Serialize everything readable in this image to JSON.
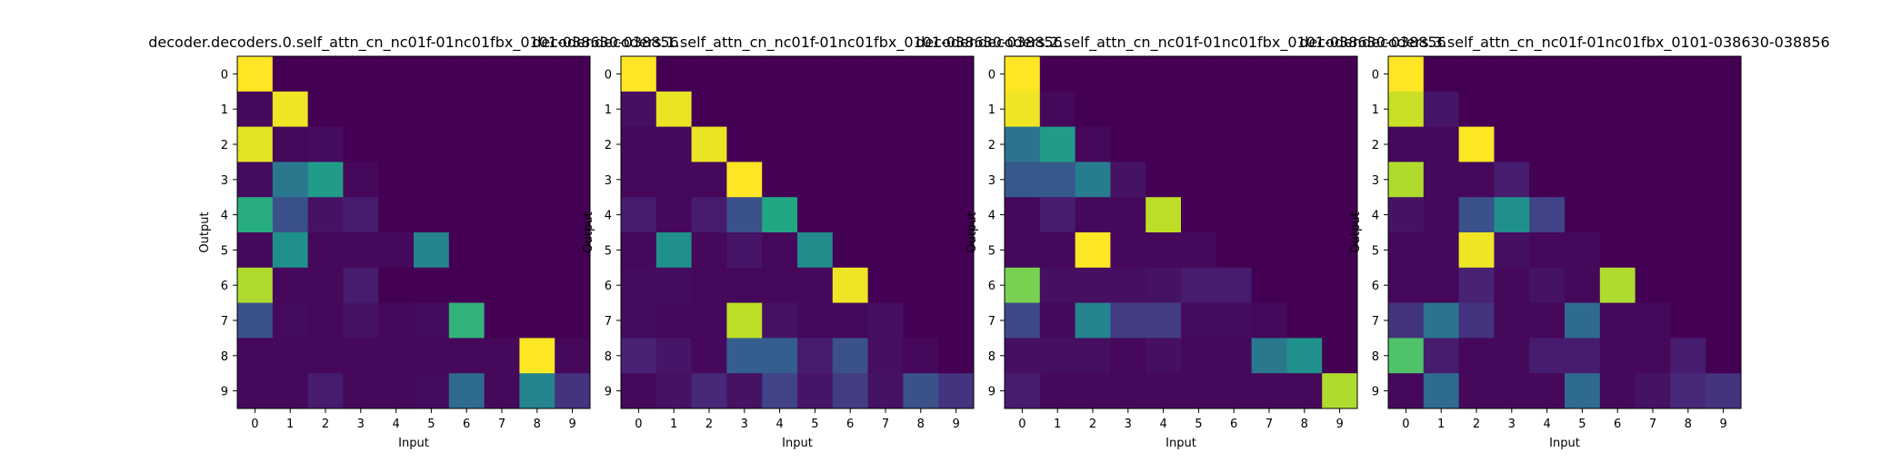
{
  "chart_data": [
    {
      "type": "heatmap",
      "title": "decoder.decoders.0.self_attn_cn_nc01f-01nc01fbx_0101-038630-038856",
      "xlabel": "Input",
      "ylabel": "Output",
      "x_ticks": [
        "0",
        "1",
        "2",
        "3",
        "4",
        "5",
        "6",
        "7",
        "8",
        "9"
      ],
      "y_ticks": [
        "0",
        "1",
        "2",
        "3",
        "4",
        "5",
        "6",
        "7",
        "8",
        "9"
      ],
      "colormap": "viridis",
      "value_range": [
        0,
        1
      ],
      "values": [
        [
          1.0,
          0.0,
          0.0,
          0.0,
          0.0,
          0.0,
          0.0,
          0.0,
          0.0,
          0.0
        ],
        [
          0.02,
          0.98,
          0.0,
          0.0,
          0.0,
          0.0,
          0.0,
          0.0,
          0.0,
          0.0
        ],
        [
          0.96,
          0.02,
          0.03,
          0.0,
          0.0,
          0.0,
          0.0,
          0.0,
          0.0,
          0.0
        ],
        [
          0.03,
          0.4,
          0.55,
          0.02,
          0.0,
          0.0,
          0.0,
          0.0,
          0.0,
          0.0
        ],
        [
          0.62,
          0.25,
          0.05,
          0.08,
          0.0,
          0.0,
          0.0,
          0.0,
          0.0,
          0.0
        ],
        [
          0.02,
          0.5,
          0.02,
          0.02,
          0.02,
          0.45,
          0.0,
          0.0,
          0.0,
          0.0
        ],
        [
          0.88,
          0.02,
          0.02,
          0.08,
          0.0,
          0.0,
          0.0,
          0.0,
          0.0,
          0.0
        ],
        [
          0.25,
          0.03,
          0.02,
          0.05,
          0.02,
          0.03,
          0.65,
          0.0,
          0.0,
          0.0
        ],
        [
          0.02,
          0.02,
          0.02,
          0.02,
          0.02,
          0.02,
          0.02,
          0.02,
          1.0,
          0.02
        ],
        [
          0.02,
          0.02,
          0.08,
          0.02,
          0.02,
          0.03,
          0.35,
          0.02,
          0.45,
          0.15
        ]
      ]
    },
    {
      "type": "heatmap",
      "title": "decoder.decoders.1.self_attn_cn_nc01f-01nc01fbx_0101-038630-038856",
      "xlabel": "Input",
      "ylabel": "Output",
      "x_ticks": [
        "0",
        "1",
        "2",
        "3",
        "4",
        "5",
        "6",
        "7",
        "8",
        "9"
      ],
      "y_ticks": [
        "0",
        "1",
        "2",
        "3",
        "4",
        "5",
        "6",
        "7",
        "8",
        "9"
      ],
      "colormap": "viridis",
      "value_range": [
        0,
        1
      ],
      "values": [
        [
          1.0,
          0.0,
          0.0,
          0.0,
          0.0,
          0.0,
          0.0,
          0.0,
          0.0,
          0.0
        ],
        [
          0.04,
          0.97,
          0.0,
          0.0,
          0.0,
          0.0,
          0.0,
          0.0,
          0.0,
          0.0
        ],
        [
          0.02,
          0.02,
          0.97,
          0.0,
          0.0,
          0.0,
          0.0,
          0.0,
          0.0,
          0.0
        ],
        [
          0.02,
          0.02,
          0.02,
          1.0,
          0.0,
          0.0,
          0.0,
          0.0,
          0.0,
          0.0
        ],
        [
          0.08,
          0.02,
          0.08,
          0.25,
          0.6,
          0.0,
          0.0,
          0.0,
          0.0,
          0.0
        ],
        [
          0.02,
          0.5,
          0.02,
          0.06,
          0.02,
          0.48,
          0.0,
          0.0,
          0.0,
          0.0
        ],
        [
          0.03,
          0.03,
          0.02,
          0.02,
          0.02,
          0.02,
          0.98,
          0.0,
          0.0,
          0.0
        ],
        [
          0.03,
          0.02,
          0.02,
          0.9,
          0.05,
          0.02,
          0.02,
          0.04,
          0.0,
          0.0
        ],
        [
          0.1,
          0.06,
          0.02,
          0.3,
          0.3,
          0.08,
          0.25,
          0.04,
          0.02,
          0.0
        ],
        [
          0.02,
          0.05,
          0.12,
          0.05,
          0.2,
          0.06,
          0.18,
          0.05,
          0.25,
          0.15
        ]
      ]
    },
    {
      "type": "heatmap",
      "title": "decoder.decoders.2.self_attn_cn_nc01f-01nc01fbx_0101-038630-038856",
      "xlabel": "Input",
      "ylabel": "Output",
      "x_ticks": [
        "0",
        "1",
        "2",
        "3",
        "4",
        "5",
        "6",
        "7",
        "8",
        "9"
      ],
      "y_ticks": [
        "0",
        "1",
        "2",
        "3",
        "4",
        "5",
        "6",
        "7",
        "8",
        "9"
      ],
      "colormap": "viridis",
      "value_range": [
        0,
        1
      ],
      "values": [
        [
          1.0,
          0.0,
          0.0,
          0.0,
          0.0,
          0.0,
          0.0,
          0.0,
          0.0,
          0.0
        ],
        [
          0.98,
          0.02,
          0.0,
          0.0,
          0.0,
          0.0,
          0.0,
          0.0,
          0.0,
          0.0
        ],
        [
          0.38,
          0.55,
          0.02,
          0.0,
          0.0,
          0.0,
          0.0,
          0.0,
          0.0,
          0.0
        ],
        [
          0.28,
          0.28,
          0.42,
          0.05,
          0.0,
          0.0,
          0.0,
          0.0,
          0.0,
          0.0
        ],
        [
          0.02,
          0.08,
          0.02,
          0.02,
          0.9,
          0.0,
          0.0,
          0.0,
          0.0,
          0.0
        ],
        [
          0.02,
          0.02,
          1.0,
          0.02,
          0.02,
          0.02,
          0.0,
          0.0,
          0.0,
          0.0
        ],
        [
          0.8,
          0.04,
          0.04,
          0.04,
          0.05,
          0.08,
          0.08,
          0.0,
          0.0,
          0.0
        ],
        [
          0.22,
          0.02,
          0.45,
          0.18,
          0.18,
          0.03,
          0.03,
          0.02,
          0.0,
          0.0
        ],
        [
          0.04,
          0.04,
          0.04,
          0.02,
          0.04,
          0.02,
          0.02,
          0.4,
          0.5,
          0.0
        ],
        [
          0.08,
          0.02,
          0.02,
          0.02,
          0.02,
          0.02,
          0.02,
          0.02,
          0.02,
          0.88
        ]
      ]
    },
    {
      "type": "heatmap",
      "title": "decoder.decoders.3.self_attn_cn_nc01f-01nc01fbx_0101-038630-038856",
      "xlabel": "Input",
      "ylabel": "Output",
      "x_ticks": [
        "0",
        "1",
        "2",
        "3",
        "4",
        "5",
        "6",
        "7",
        "8",
        "9"
      ],
      "y_ticks": [
        "0",
        "1",
        "2",
        "3",
        "4",
        "5",
        "6",
        "7",
        "8",
        "9"
      ],
      "colormap": "viridis",
      "value_range": [
        0,
        1
      ],
      "values": [
        [
          1.0,
          0.0,
          0.0,
          0.0,
          0.0,
          0.0,
          0.0,
          0.0,
          0.0,
          0.0
        ],
        [
          0.92,
          0.06,
          0.0,
          0.0,
          0.0,
          0.0,
          0.0,
          0.0,
          0.0,
          0.0
        ],
        [
          0.02,
          0.02,
          1.0,
          0.0,
          0.0,
          0.0,
          0.0,
          0.0,
          0.0,
          0.0
        ],
        [
          0.88,
          0.02,
          0.02,
          0.08,
          0.0,
          0.0,
          0.0,
          0.0,
          0.0,
          0.0
        ],
        [
          0.05,
          0.02,
          0.25,
          0.5,
          0.2,
          0.0,
          0.0,
          0.0,
          0.0,
          0.0
        ],
        [
          0.02,
          0.02,
          0.98,
          0.04,
          0.02,
          0.02,
          0.0,
          0.0,
          0.0,
          0.0
        ],
        [
          0.02,
          0.02,
          0.1,
          0.02,
          0.05,
          0.02,
          0.88,
          0.0,
          0.0,
          0.0
        ],
        [
          0.15,
          0.38,
          0.15,
          0.02,
          0.02,
          0.35,
          0.02,
          0.02,
          0.0,
          0.0
        ],
        [
          0.72,
          0.08,
          0.02,
          0.02,
          0.08,
          0.08,
          0.02,
          0.02,
          0.08,
          0.0
        ],
        [
          0.02,
          0.35,
          0.02,
          0.02,
          0.02,
          0.35,
          0.02,
          0.05,
          0.12,
          0.15
        ]
      ]
    }
  ]
}
